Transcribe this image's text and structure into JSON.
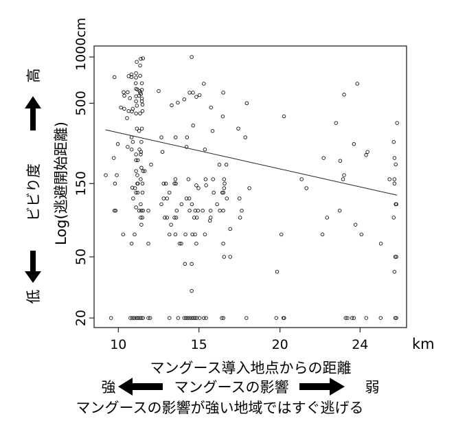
{
  "chart_data": {
    "type": "scatter",
    "xlabel": "マングース導入地点からの距離",
    "x_unit": "km",
    "ylabel": "Log(逃避開始距離)",
    "y_unit": "cm",
    "y_scale": "log",
    "xlim": [
      9,
      26.3
    ],
    "ylim": [
      18,
      1100
    ],
    "x_ticks": [
      10,
      15,
      20,
      24
    ],
    "x_tick_labels": [
      "10",
      "15",
      "20",
      "24"
    ],
    "y_ticks": [
      20,
      50,
      150,
      500,
      1000
    ],
    "y_tick_labels": [
      "20",
      "50",
      "150",
      "500",
      "1000cm"
    ],
    "grid": false,
    "legend": "none",
    "marker": "open-circle",
    "fit_line": {
      "x": [
        9.2,
        25.85
      ],
      "y": [
        336,
        126
      ]
    },
    "points": [
      [
        14.55,
        1000
      ],
      [
        11.39,
        973
      ],
      [
        11.53,
        980
      ],
      [
        11.14,
        930
      ],
      [
        11.35,
        880
      ],
      [
        9.76,
        740
      ],
      [
        10.64,
        750
      ],
      [
        10.82,
        770
      ],
      [
        11.1,
        784
      ],
      [
        11.35,
        755
      ],
      [
        10.82,
        740
      ],
      [
        11.1,
        735
      ],
      [
        11.08,
        675
      ],
      [
        11.46,
        675
      ],
      [
        15.3,
        670
      ],
      [
        11.1,
        620
      ],
      [
        11.18,
        615
      ],
      [
        11.46,
        612
      ],
      [
        10.33,
        590
      ],
      [
        10.58,
        590
      ],
      [
        10.37,
        560
      ],
      [
        11.32,
        600
      ],
      [
        11.35,
        585
      ],
      [
        11.41,
        575
      ],
      [
        11.28,
        560
      ],
      [
        10.72,
        540
      ],
      [
        11.1,
        555
      ],
      [
        11.46,
        537
      ],
      [
        12.5,
        600
      ],
      [
        14.42,
        586
      ],
      [
        14.63,
        586
      ],
      [
        14.84,
        550
      ],
      [
        15.04,
        565
      ],
      [
        16.5,
        586
      ],
      [
        14.09,
        530
      ],
      [
        13.69,
        505
      ],
      [
        13.31,
        485
      ],
      [
        17.95,
        500
      ],
      [
        11.1,
        515
      ],
      [
        11.46,
        515
      ],
      [
        11.5,
        490
      ],
      [
        11.15,
        482
      ],
      [
        10.16,
        469
      ],
      [
        10.37,
        460
      ],
      [
        10.9,
        460
      ],
      [
        10.64,
        445
      ],
      [
        10.84,
        442
      ],
      [
        11.1,
        429
      ],
      [
        11.35,
        429
      ],
      [
        11.5,
        445
      ],
      [
        10.54,
        400
      ],
      [
        15.74,
        469
      ],
      [
        16.47,
        410
      ],
      [
        14.64,
        358
      ],
      [
        11.15,
        342
      ],
      [
        11.29,
        330
      ],
      [
        11.46,
        342
      ],
      [
        17.43,
        342
      ],
      [
        15.84,
        330
      ],
      [
        17.86,
        300
      ],
      [
        10.82,
        300
      ],
      [
        12.67,
        300
      ],
      [
        13.55,
        300
      ],
      [
        14.26,
        300
      ],
      [
        10.9,
        280
      ],
      [
        11.43,
        280
      ],
      [
        9.97,
        271
      ],
      [
        10.58,
        260
      ],
      [
        10.82,
        250
      ],
      [
        11.31,
        250
      ],
      [
        11.41,
        241
      ],
      [
        14.23,
        260
      ],
      [
        15.37,
        250
      ],
      [
        12.74,
        241
      ],
      [
        11.1,
        232
      ],
      [
        11.39,
        232
      ],
      [
        9.72,
        220
      ],
      [
        11.1,
        213
      ],
      [
        11.21,
        213
      ],
      [
        12.03,
        199
      ],
      [
        16.26,
        199
      ],
      [
        16.69,
        199
      ],
      [
        11.43,
        190
      ],
      [
        11.53,
        181
      ],
      [
        11.63,
        181
      ],
      [
        11.1,
        181
      ],
      [
        11.18,
        170
      ],
      [
        9.22,
        170
      ],
      [
        9.9,
        170
      ],
      [
        9.79,
        150
      ],
      [
        11.18,
        150
      ],
      [
        11.21,
        150
      ],
      [
        11.5,
        150
      ],
      [
        11.39,
        160
      ],
      [
        12.81,
        150
      ],
      [
        12.95,
        150
      ],
      [
        13.48,
        150
      ],
      [
        13.57,
        150
      ],
      [
        13.54,
        160
      ],
      [
        14.35,
        160
      ],
      [
        15.41,
        160
      ],
      [
        15.87,
        160
      ],
      [
        16.55,
        160
      ],
      [
        16.58,
        150
      ],
      [
        14.84,
        146
      ],
      [
        14.97,
        140
      ],
      [
        15.44,
        146
      ],
      [
        16.55,
        140
      ],
      [
        18.11,
        140
      ],
      [
        10.87,
        141
      ],
      [
        11.04,
        140
      ],
      [
        11.1,
        131
      ],
      [
        11.2,
        131
      ],
      [
        11.5,
        131
      ],
      [
        13.17,
        131
      ],
      [
        15.91,
        131
      ],
      [
        16.44,
        131
      ],
      [
        16.51,
        131
      ],
      [
        10.92,
        120
      ],
      [
        12.81,
        120
      ],
      [
        13.02,
        120
      ],
      [
        14.23,
        120
      ],
      [
        14.4,
        120
      ],
      [
        16.72,
        120
      ],
      [
        17.5,
        120
      ],
      [
        11.1,
        105
      ],
      [
        11.39,
        110
      ],
      [
        12.67,
        110
      ],
      [
        13.92,
        110
      ],
      [
        14.56,
        110
      ],
      [
        16.12,
        110
      ],
      [
        9.76,
        100
      ],
      [
        9.83,
        100
      ],
      [
        11.29,
        100
      ],
      [
        11.43,
        100
      ],
      [
        11.53,
        100
      ],
      [
        11.86,
        100
      ],
      [
        13.62,
        100
      ],
      [
        14.42,
        100
      ],
      [
        14.77,
        100
      ],
      [
        14.94,
        100
      ],
      [
        15.23,
        100
      ],
      [
        15.72,
        100
      ],
      [
        16.29,
        100
      ],
      [
        16.5,
        100
      ],
      [
        17.64,
        100
      ],
      [
        11.39,
        90
      ],
      [
        11.49,
        90
      ],
      [
        12.88,
        90
      ],
      [
        13.02,
        90
      ],
      [
        13.48,
        90
      ],
      [
        13.59,
        90
      ],
      [
        14.7,
        90
      ],
      [
        14.87,
        90
      ],
      [
        15.72,
        90
      ],
      [
        17.54,
        90
      ],
      [
        15.68,
        86
      ],
      [
        11.43,
        81
      ],
      [
        13.27,
        81
      ],
      [
        16.93,
        76
      ],
      [
        10.3,
        70
      ],
      [
        11.01,
        70
      ],
      [
        13.17,
        70
      ],
      [
        13.54,
        70
      ],
      [
        14.16,
        70
      ],
      [
        14.59,
        70
      ],
      [
        14.76,
        70
      ],
      [
        15.37,
        70
      ],
      [
        10.82,
        61
      ],
      [
        11.86,
        61
      ],
      [
        13.8,
        61
      ],
      [
        13.9,
        61
      ],
      [
        14.84,
        61
      ],
      [
        16.5,
        61
      ],
      [
        16.55,
        50
      ],
      [
        16.93,
        50
      ],
      [
        14.13,
        45
      ],
      [
        14.55,
        45
      ],
      [
        14.55,
        30
      ],
      [
        9.55,
        20
      ],
      [
        10.75,
        20
      ],
      [
        10.87,
        20
      ],
      [
        10.98,
        20
      ],
      [
        11.11,
        20
      ],
      [
        11.21,
        20
      ],
      [
        11.32,
        20
      ],
      [
        11.43,
        20
      ],
      [
        11.53,
        20
      ],
      [
        11.86,
        20
      ],
      [
        11.97,
        20
      ],
      [
        13.17,
        20
      ],
      [
        13.71,
        20
      ],
      [
        14.09,
        20
      ],
      [
        14.19,
        20
      ],
      [
        14.3,
        20
      ],
      [
        14.42,
        20
      ],
      [
        14.55,
        20
      ],
      [
        14.66,
        20
      ],
      [
        14.76,
        20
      ],
      [
        14.87,
        20
      ],
      [
        15.04,
        20
      ],
      [
        15.3,
        20
      ],
      [
        15.44,
        20
      ],
      [
        16.41,
        20
      ],
      [
        16.51,
        20
      ],
      [
        17.93,
        20
      ],
      [
        19.77,
        20
      ],
      [
        20.17,
        20
      ],
      [
        20.21,
        20
      ],
      [
        23.28,
        20
      ],
      [
        23.37,
        20
      ],
      [
        23.6,
        20
      ],
      [
        23.69,
        20
      ],
      [
        24.31,
        20
      ],
      [
        25.03,
        20
      ],
      [
        25.76,
        20
      ],
      [
        25.81,
        20
      ],
      [
        20.2,
        411
      ],
      [
        25.85,
        372
      ],
      [
        22.8,
        372
      ],
      [
        23.86,
        670
      ],
      [
        23.2,
        569
      ],
      [
        23.69,
        271
      ],
      [
        25.68,
        280
      ],
      [
        24.3,
        230
      ],
      [
        24.37,
        241
      ],
      [
        22.18,
        220
      ],
      [
        25.72,
        220
      ],
      [
        25.78,
        200
      ],
      [
        23.01,
        211
      ],
      [
        23.2,
        170
      ],
      [
        23.15,
        160
      ],
      [
        21.08,
        160
      ],
      [
        21.32,
        140
      ],
      [
        25.47,
        160
      ],
      [
        25.72,
        160
      ],
      [
        25.72,
        150
      ],
      [
        25.81,
        110
      ],
      [
        25.78,
        110
      ],
      [
        22.98,
        100
      ],
      [
        22.35,
        90
      ],
      [
        25.68,
        90
      ],
      [
        23.77,
        81
      ],
      [
        20.07,
        70
      ],
      [
        22.12,
        70
      ],
      [
        24.07,
        70
      ],
      [
        25.04,
        61
      ],
      [
        25.76,
        50
      ],
      [
        25.81,
        50
      ],
      [
        19.82,
        40
      ],
      [
        25.72,
        40
      ]
    ]
  },
  "annotations": {
    "y_side": {
      "label": "ビビり度",
      "low": "低",
      "high": "高"
    },
    "x_side": {
      "label": "マングースの影響",
      "strong": "強",
      "weak": "弱"
    },
    "caption": "マングースの影響が強い地域ではすぐ逃げる"
  }
}
